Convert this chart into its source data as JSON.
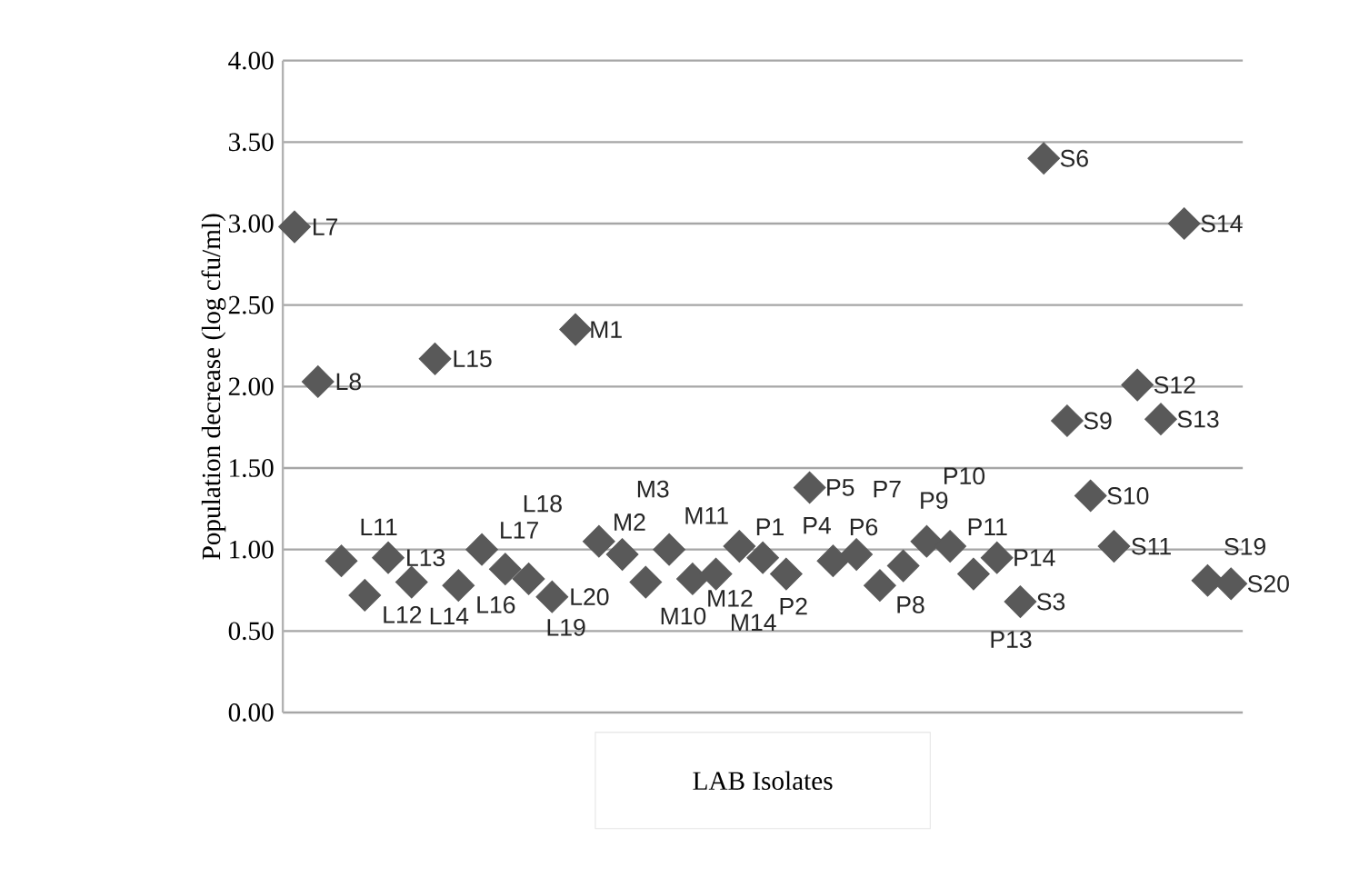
{
  "chart_data": {
    "type": "scatter",
    "xlabel": "LAB Isolates",
    "ylabel": "Population decrease (log cfu/ml)",
    "categories": [
      null,
      null,
      null,
      null,
      null,
      null,
      null,
      null,
      null,
      null,
      null,
      null,
      null,
      null,
      null,
      null,
      null,
      null,
      null,
      null,
      null,
      null,
      null,
      null,
      null,
      null,
      null,
      null,
      null,
      null,
      null,
      null,
      null,
      null,
      null,
      null,
      null,
      null,
      null,
      null,
      null
    ],
    "values": [
      2.98,
      2.03,
      0.93,
      0.72,
      0.95,
      0.8,
      2.17,
      0.78,
      1.0,
      0.88,
      0.82,
      0.71,
      2.35,
      1.05,
      0.97,
      0.8,
      1.0,
      0.82,
      0.85,
      1.02,
      0.95,
      0.85,
      1.38,
      0.93,
      0.97,
      0.78,
      0.9,
      1.05,
      1.02,
      0.85,
      0.95,
      0.68,
      3.4,
      1.79,
      1.33,
      1.02,
      2.01,
      1.8,
      3.0,
      0.81,
      0.79
    ],
    "color": "#595959",
    "marker": "diamond",
    "grid": "y",
    "tick_labels": "y",
    "ylim": [
      0,
      4
    ],
    "yticks": [
      {
        "value": 0,
        "label": "0.00"
      },
      {
        "value": 0.5,
        "label": "0.50"
      },
      {
        "value": 1,
        "label": "1.00"
      },
      {
        "value": 1.5,
        "label": "1.50"
      },
      {
        "value": 2,
        "label": "2.00"
      },
      {
        "value": 2.5,
        "label": "2.50"
      },
      {
        "value": 3,
        "label": "3.00"
      },
      {
        "value": 3.5,
        "label": "3.50"
      },
      {
        "value": 4,
        "label": "4.00"
      }
    ],
    "annotations": [
      "L7",
      "L8",
      "L11",
      "L12",
      "L13",
      "L14",
      "L15",
      "L16",
      "L17",
      "L18",
      "L19",
      "L20",
      "M1",
      "M2",
      "M3",
      "M10",
      "M11",
      "M12",
      "M14",
      "P1",
      "P2",
      "P4",
      "P5",
      "P6",
      "P7",
      "P8",
      "P9",
      "P10",
      "P11",
      "P13",
      "P14",
      "S3",
      "S6",
      "S9",
      "S10",
      "S11",
      "S12",
      "S13",
      "S14",
      "S19",
      "S20"
    ]
  }
}
